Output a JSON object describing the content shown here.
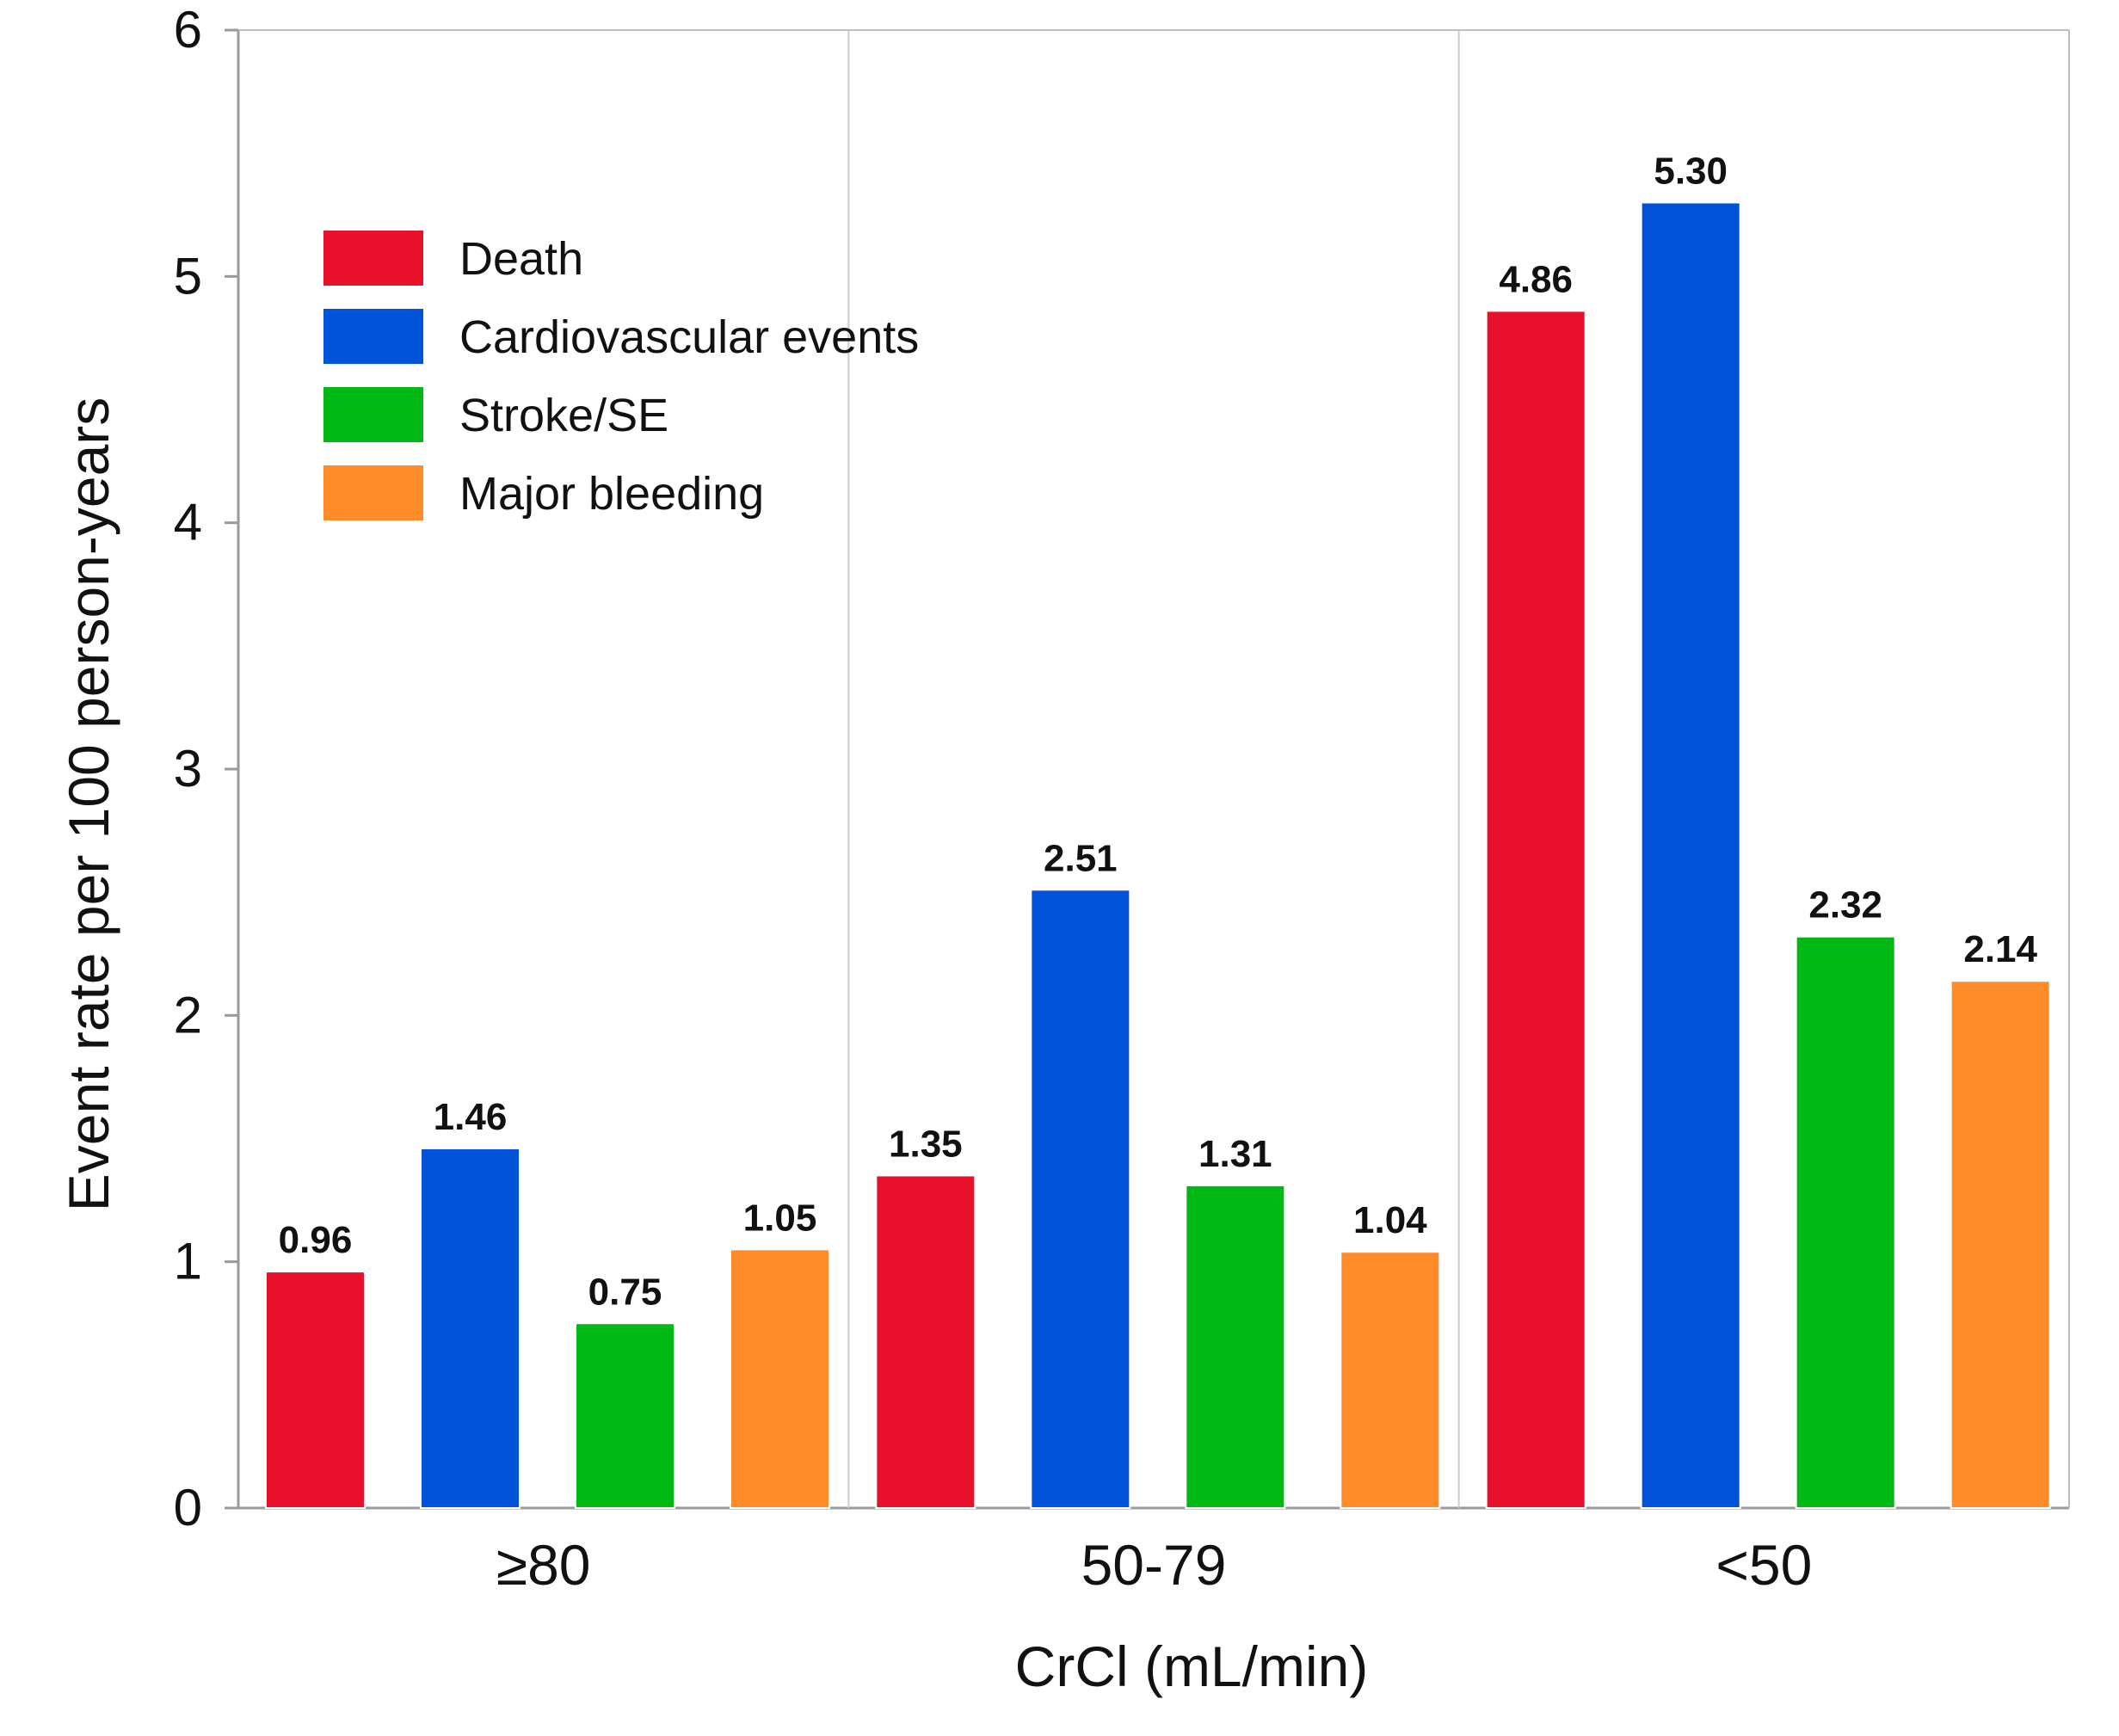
{
  "chart_data": {
    "type": "bar",
    "title": "",
    "xlabel": "CrCl (mL/min)",
    "ylabel": "Event rate per 100 person-years",
    "categories": [
      "≥80",
      "50-79",
      "<50"
    ],
    "ylim": [
      0,
      6
    ],
    "yticks": [
      0,
      1,
      2,
      3,
      4,
      5,
      6
    ],
    "grid": "vertical separators between categories",
    "legend_position": "top-left",
    "series": [
      {
        "name": "Death",
        "color": "#E8102A",
        "values": [
          0.96,
          1.35,
          4.86
        ],
        "labels": [
          "0.96",
          "1.35",
          "4.86"
        ]
      },
      {
        "name": "Cardiovascular events",
        "color": "#0052D9",
        "values": [
          1.46,
          2.51,
          5.3
        ],
        "labels": [
          "1.46",
          "2.51",
          "5.30"
        ]
      },
      {
        "name": "Stroke/SE",
        "color": "#00B814",
        "values": [
          0.75,
          1.31,
          2.32
        ],
        "labels": [
          "0.75",
          "1.31",
          "2.32"
        ]
      },
      {
        "name": "Major bleeding",
        "color": "#FF8C28",
        "values": [
          1.05,
          1.04,
          2.14
        ],
        "labels": [
          "1.05",
          "1.04",
          "2.14"
        ]
      }
    ]
  }
}
